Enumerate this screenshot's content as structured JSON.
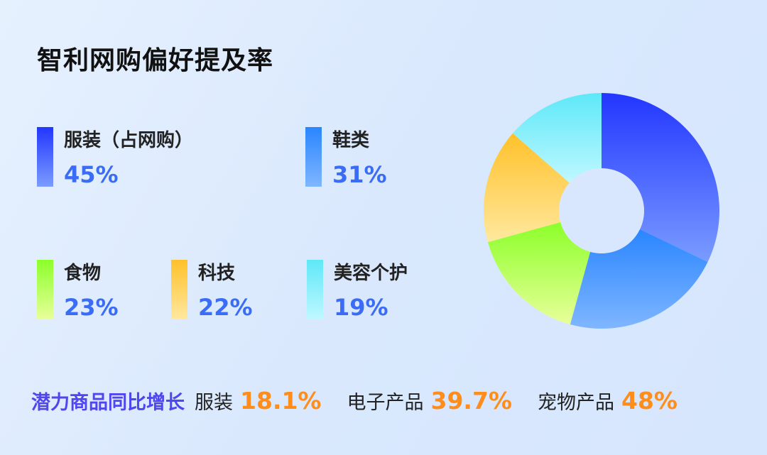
{
  "title": "智利网购偏好提及率",
  "chart_data": {
    "type": "pie",
    "donut": true,
    "title": "智利网购偏好提及率",
    "categories": [
      "服装（占网购）",
      "鞋类",
      "食物",
      "科技",
      "美容个护"
    ],
    "values": [
      45,
      31,
      23,
      22,
      19
    ],
    "labels": [
      "45%",
      "31%",
      "23%",
      "22%",
      "19%"
    ],
    "colors": [
      [
        "#2236ff",
        "#7a9cff"
      ],
      [
        "#2a85ff",
        "#7fb6ff"
      ],
      [
        "#8cff2a",
        "#e8ff9a"
      ],
      [
        "#ffc12a",
        "#ffe89e"
      ],
      [
        "#5ee8f8",
        "#bff8ff"
      ]
    ],
    "legend": "left"
  },
  "growth": {
    "heading": "潜力商品同比增长",
    "items": [
      {
        "name": "服装",
        "value": "18.1%"
      },
      {
        "name": "电子产品",
        "value": "39.7%"
      },
      {
        "name": "宠物产品",
        "value": "48%"
      }
    ]
  }
}
